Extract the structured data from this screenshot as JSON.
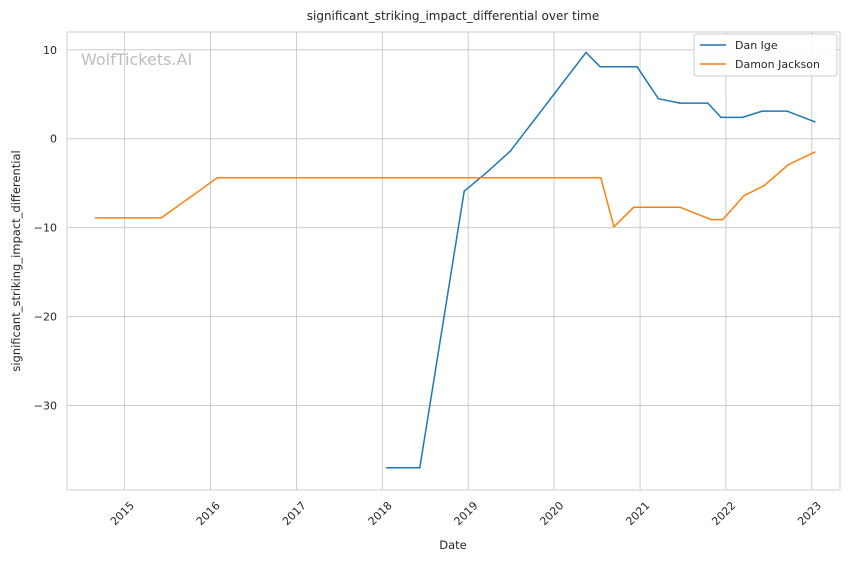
{
  "chart_data": {
    "type": "line",
    "title": "significant_striking_impact_differential over time",
    "xlabel": "Date",
    "ylabel": "significant_striking_impact_differential",
    "watermark": "WolfTickets.AI",
    "x_ticks": [
      "2015",
      "2016",
      "2017",
      "2018",
      "2019",
      "2020",
      "2021",
      "2022",
      "2023"
    ],
    "y_ticks": [
      "10",
      "0",
      "−10",
      "−20",
      "−30"
    ],
    "x_range": [
      "2014-05-01",
      "2023-05-01"
    ],
    "y_range": [
      -39.5,
      12
    ],
    "grid": true,
    "legend_position": "top-right",
    "series": [
      {
        "name": "Dan Ige",
        "color": "#1f77b4",
        "points": [
          [
            "2018-01-20",
            -37
          ],
          [
            "2018-06-09",
            -37
          ],
          [
            "2018-12-15",
            -5.9
          ],
          [
            "2019-03-16",
            -3.9
          ],
          [
            "2019-06-29",
            -1.4
          ],
          [
            "2020-05-16",
            9.7
          ],
          [
            "2020-07-15",
            8.1
          ],
          [
            "2020-12-19",
            8.1
          ],
          [
            "2021-03-20",
            4.5
          ],
          [
            "2021-06-19",
            4.0
          ],
          [
            "2021-10-16",
            4.0
          ],
          [
            "2021-12-11",
            2.4
          ],
          [
            "2022-03-12",
            2.4
          ],
          [
            "2022-06-04",
            3.1
          ],
          [
            "2022-09-17",
            3.1
          ],
          [
            "2023-01-14",
            1.9
          ]
        ]
      },
      {
        "name": "Damon Jackson",
        "color": "#ff7f0e",
        "points": [
          [
            "2014-08-30",
            -8.9
          ],
          [
            "2015-06-06",
            -8.9
          ],
          [
            "2016-01-30",
            -4.4
          ],
          [
            "2020-07-18",
            -4.4
          ],
          [
            "2020-09-12",
            -9.9
          ],
          [
            "2020-12-05",
            -7.7
          ],
          [
            "2021-06-19",
            -7.7
          ],
          [
            "2021-10-30",
            -9.1
          ],
          [
            "2021-12-18",
            -9.1
          ],
          [
            "2022-03-19",
            -6.4
          ],
          [
            "2022-06-11",
            -5.3
          ],
          [
            "2022-09-24",
            -2.9
          ],
          [
            "2023-01-14",
            -1.5
          ]
        ]
      }
    ]
  }
}
